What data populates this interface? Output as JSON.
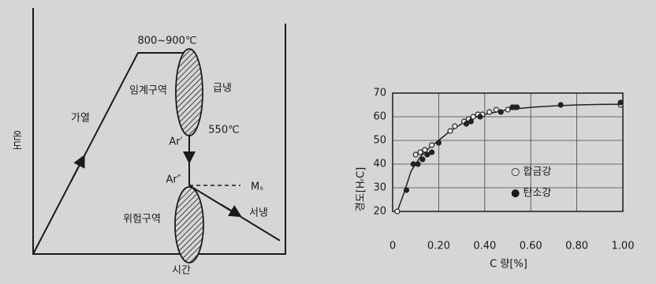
{
  "diagram": {
    "y_label": "온도",
    "x_label": "시간",
    "heating": "가열",
    "temp_range": "800~900℃",
    "critical_zone": "임계구역",
    "quench": "급냉",
    "temp_550": "550℃",
    "ar1": "Ar′",
    "ar2": "Ar″",
    "ms": "Mₛ",
    "danger_zone": "위험구역",
    "slow_cool": "서냉"
  },
  "chart_data": {
    "type": "scatter",
    "x_label": "C 량[%]",
    "y_label": "경도[HᵣC]",
    "xlim": [
      0,
      1.0
    ],
    "ylim": [
      20,
      70
    ],
    "xticks": [
      0,
      {
        "value": 0.2,
        "label": "0.20"
      },
      {
        "value": 0.4,
        "label": "0.40"
      },
      {
        "value": 0.6,
        "label": "0.60"
      },
      {
        "value": 0.8,
        "label": "0.80"
      },
      {
        "value": 1.0,
        "label": "1.00"
      }
    ],
    "yticks": [
      20,
      30,
      40,
      50,
      60,
      70
    ],
    "grid": true,
    "series": [
      {
        "name": "○ 합금강",
        "marker": "open",
        "color": "#222222",
        "x": [
          0.02,
          0.1,
          0.12,
          0.14,
          0.17,
          0.25,
          0.27,
          0.31,
          0.33,
          0.35,
          0.37,
          0.39,
          0.42,
          0.45,
          0.5,
          0.53,
          0.99
        ],
        "values": [
          20,
          44,
          45,
          46,
          48,
          54,
          56,
          58,
          59,
          60,
          61,
          61,
          62,
          63,
          63,
          64,
          65
        ]
      },
      {
        "name": "● 탄소강",
        "marker": "filled",
        "color": "#222222",
        "x": [
          0.06,
          0.09,
          0.11,
          0.13,
          0.15,
          0.17,
          0.2,
          0.32,
          0.34,
          0.38,
          0.47,
          0.52,
          0.54,
          0.73,
          0.99
        ],
        "values": [
          29,
          40,
          40,
          42,
          44,
          45,
          49,
          57,
          58,
          60,
          62,
          64,
          64,
          65,
          66
        ]
      }
    ],
    "curve": {
      "x": [
        0.02,
        0.05,
        0.08,
        0.12,
        0.16,
        0.2,
        0.25,
        0.3,
        0.35,
        0.4,
        0.45,
        0.5,
        0.6,
        0.7,
        0.8,
        0.9,
        1.0
      ],
      "values": [
        20,
        28,
        37,
        43,
        47,
        50,
        54,
        57,
        59.5,
        61,
        62,
        63,
        64,
        64.6,
        65,
        65.2,
        65.3
      ],
      "color": "#222222"
    }
  }
}
